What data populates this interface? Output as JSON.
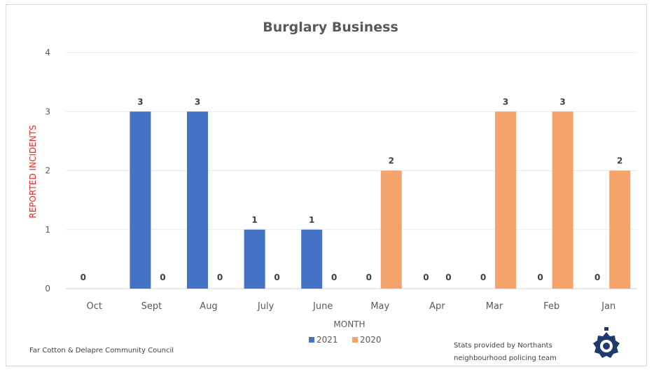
{
  "chart_data": {
    "type": "bar",
    "title": "Burglary Business",
    "xlabel": "MONTH",
    "ylabel": "REPORTED INCIDENTS",
    "ylim": [
      0,
      4
    ],
    "yticks": [
      0,
      1,
      2,
      3,
      4
    ],
    "grid": true,
    "legend_position": "bottom",
    "categories": [
      "Oct",
      "Sept",
      "Aug",
      "July",
      "June",
      "May",
      "Apr",
      "Mar",
      "Feb",
      "Jan"
    ],
    "series": [
      {
        "name": "2021",
        "color": "#4472c4",
        "values": [
          0,
          3,
          3,
          1,
          1,
          0,
          0,
          0,
          0,
          0
        ]
      },
      {
        "name": "2020",
        "color": "#f4a46a",
        "values": [
          null,
          0,
          0,
          0,
          0,
          2,
          0,
          3,
          3,
          2
        ]
      }
    ]
  },
  "footer": {
    "left_text": "Far Cotton & Delapre Community Council",
    "right_text_line1": "Stats provided by Northants",
    "right_text_line2": "neighbourhood policing team",
    "badge_icon": "police-badge-icon"
  }
}
